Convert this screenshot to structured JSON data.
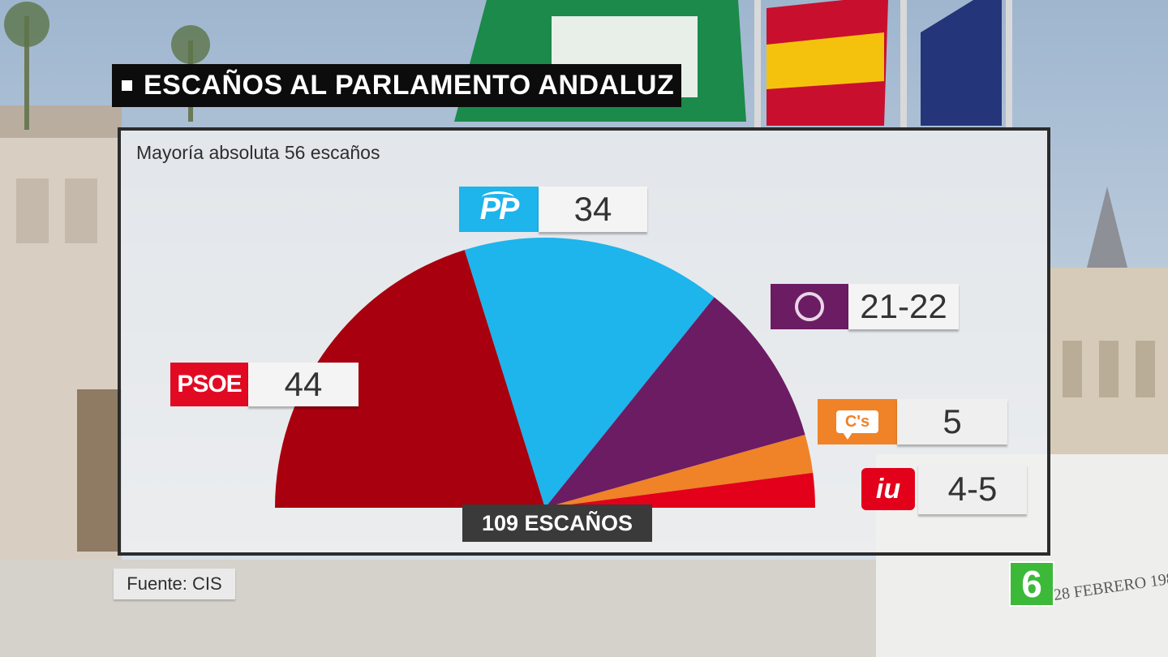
{
  "title": "ESCAÑOS AL PARLAMENTO ANDALUZ",
  "subtitle": "Mayoría absoluta 56 escaños",
  "total_label": "109 ESCAÑOS",
  "source": "Fuente: CIS",
  "channel_logo": "6",
  "colors": {
    "psoe": "#a8000e",
    "pp": "#1eb4ec",
    "podemos": "#6b1c63",
    "cs": "#f08228",
    "iu": "#e2001a"
  },
  "parties": {
    "psoe": {
      "logo_text": "PSOE",
      "label": "44"
    },
    "pp": {
      "logo_text": "PP",
      "label": "34"
    },
    "podemos": {
      "logo_icon": "circle-icon",
      "label": "21-22"
    },
    "cs": {
      "logo_text": "C's",
      "label": "5"
    },
    "iu": {
      "logo_text": "iu",
      "label": "4-5"
    }
  },
  "chart_data": {
    "type": "pie",
    "subtype": "semicircle",
    "title": "ESCAÑOS AL PARLAMENTO ANDALUZ",
    "total": 109,
    "categories": [
      "PSOE",
      "PP",
      "Podemos",
      "C's",
      "IU"
    ],
    "values": [
      44,
      34,
      21.5,
      5,
      4.5
    ],
    "labels": [
      "44",
      "34",
      "21-22",
      "5",
      "4-5"
    ],
    "colors": [
      "#a8000e",
      "#1eb4ec",
      "#6b1c63",
      "#f08228",
      "#e2001a"
    ]
  }
}
